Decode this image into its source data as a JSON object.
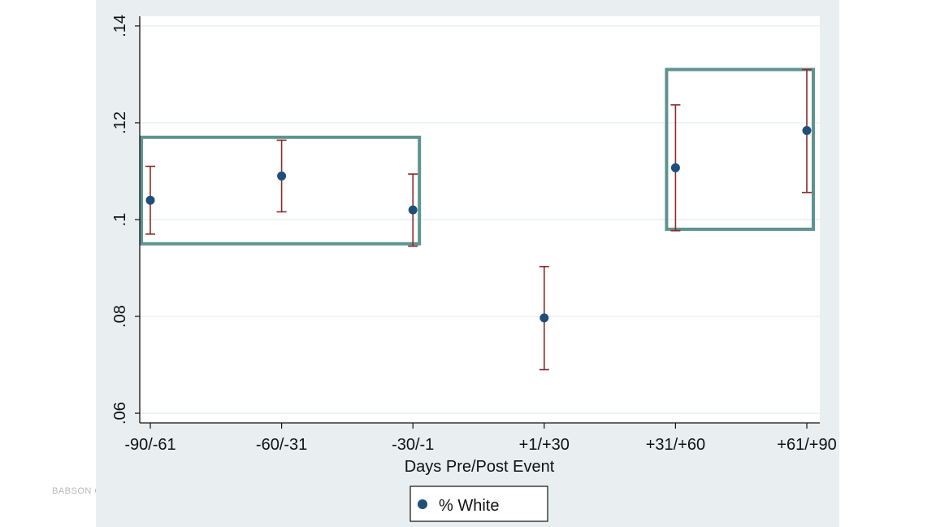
{
  "watermark": "BABSON C",
  "colors": {
    "marker": "#1f4e79",
    "error_bar": "#8b2a2a",
    "highlight_box": "#5e9490",
    "grid": "#e6ecef",
    "panel": "#e9eef1"
  },
  "chart_data": {
    "type": "scatter",
    "title": "",
    "xlabel": "Days Pre/Post Event",
    "ylabel": "",
    "categories": [
      "-90/-61",
      "-60/-31",
      "-30/-1",
      "+1/+30",
      "+31/+60",
      "+61/+90"
    ],
    "yticks": [
      0.06,
      0.08,
      0.1,
      0.12,
      0.14
    ],
    "ytick_labels": [
      ".06",
      ".08",
      ".1",
      ".12",
      ".14"
    ],
    "ylim": [
      0.058,
      0.142
    ],
    "grid": true,
    "legend": {
      "position": "bottom",
      "entries": [
        "% White"
      ]
    },
    "series": [
      {
        "name": "% White",
        "values": [
          0.104,
          0.109,
          0.102,
          0.0797,
          0.1107,
          0.1184
        ],
        "ci_low": [
          0.097,
          0.1016,
          0.0945,
          0.069,
          0.0977,
          0.1056
        ],
        "ci_high": [
          0.111,
          0.1164,
          0.1094,
          0.0903,
          0.1237,
          0.131
        ]
      }
    ],
    "highlight_boxes": [
      {
        "from_category": 0,
        "to_category": 2,
        "y_low": 0.095,
        "y_high": 0.117
      },
      {
        "from_category": 4,
        "to_category": 5,
        "y_low": 0.098,
        "y_high": 0.131
      }
    ]
  }
}
